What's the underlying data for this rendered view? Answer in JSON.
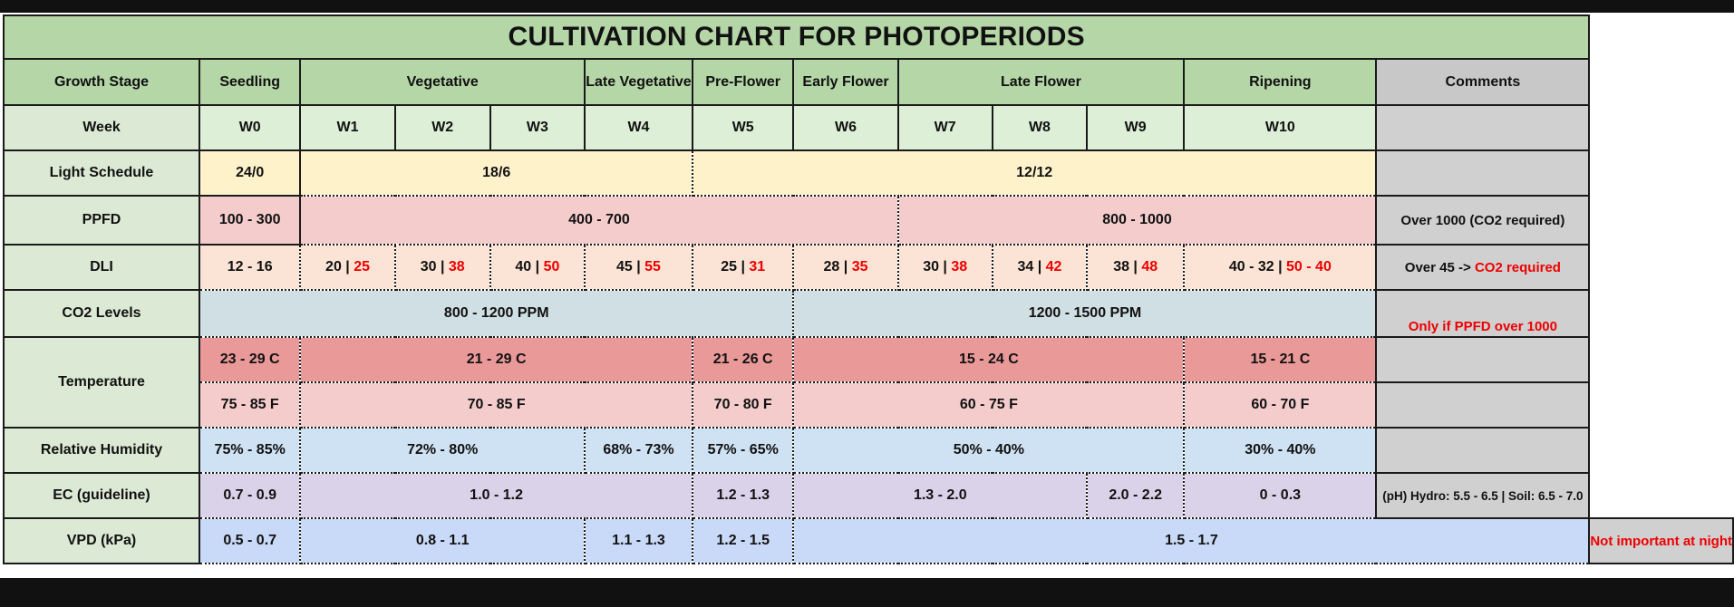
{
  "title": "CULTIVATION CHART FOR PHOTOPERIODS",
  "stages": {
    "label": "Growth Stage",
    "seedling": "Seedling",
    "vegetative": "Vegetative",
    "late_vegetative": "Late Vegetative",
    "pre_flower": "Pre-Flower",
    "early_flower": "Early Flower",
    "late_flower": "Late Flower",
    "ripening": "Ripening",
    "comments": "Comments"
  },
  "week": {
    "label": "Week",
    "cells": [
      "W0",
      "W1",
      "W2",
      "W3",
      "W4",
      "W5",
      "W6",
      "W7",
      "W8",
      "W9",
      "W10"
    ]
  },
  "light": {
    "label": "Light Schedule",
    "seedling": "24/0",
    "veg": "18/6",
    "flower": "12/12"
  },
  "ppfd": {
    "label": "PPFD",
    "seedling": "100 - 300",
    "veg": "400 - 700",
    "flower": "800 - 1000",
    "comment": "Over 1000 (CO2 required)"
  },
  "dli": {
    "label": "DLI",
    "cells": [
      {
        "base": "12 - 16",
        "sep": "",
        "co2": ""
      },
      {
        "base": "20",
        "sep": " | ",
        "co2": "25"
      },
      {
        "base": "30",
        "sep": " | ",
        "co2": "38"
      },
      {
        "base": "40",
        "sep": " | ",
        "co2": "50"
      },
      {
        "base": "45",
        "sep": " | ",
        "co2": "55"
      },
      {
        "base": "25",
        "sep": " | ",
        "co2": "31"
      },
      {
        "base": "28",
        "sep": " | ",
        "co2": "35"
      },
      {
        "base": "30",
        "sep": " | ",
        "co2": "38"
      },
      {
        "base": "34",
        "sep": " | ",
        "co2": "42"
      },
      {
        "base": "38",
        "sep": " | ",
        "co2": "48"
      },
      {
        "base": "40 - 32",
        "sep": " | ",
        "co2": "50 - 40"
      }
    ],
    "comment_prefix": "Over 45 -> ",
    "comment_red": "CO2 required"
  },
  "co2": {
    "label": "CO2 Levels",
    "early": "800 - 1200 PPM",
    "late": "1200 - 1500 PPM",
    "comment": "Only if PPFD over 1000"
  },
  "temperature": {
    "label": "Temperature",
    "celsius": [
      "23 - 29 C",
      "21 - 29 C",
      "21 - 26 C",
      "15 - 24 C",
      "15 - 21 C"
    ],
    "fahrenheit": [
      "75 - 85 F",
      "70 - 85 F",
      "70 - 80 F",
      "60 - 75 F",
      "60 - 70 F"
    ]
  },
  "humidity": {
    "label": "Relative Humidity",
    "cells": [
      "75% - 85%",
      "72% - 80%",
      "68% - 73%",
      "57% - 65%",
      "50% - 40%",
      "30% - 40%"
    ]
  },
  "ec": {
    "label": "EC (guideline)",
    "cells": [
      "0.7 - 0.9",
      "1.0 - 1.2",
      "1.2 - 1.3",
      "1.3 - 2.0",
      "2.0 - 2.2",
      "0 - 0.3"
    ],
    "comment": "(pH) Hydro: 5.5 - 6.5 | Soil: 6.5 - 7.0"
  },
  "vpd": {
    "label": "VPD (kPa)",
    "cells": [
      "0.5 - 0.7",
      "0.8 - 1.1",
      "1.1 - 1.3",
      "1.2 - 1.5",
      "1.5 - 1.7"
    ],
    "comment": "Not important at night"
  },
  "colors": {
    "header_green": "#b5d6a7",
    "light_yellow": "#fef2cb",
    "ppfd_pink": "#f4cccc",
    "temp_red": "#ea9999",
    "co2_text_red": "#ee0000"
  }
}
